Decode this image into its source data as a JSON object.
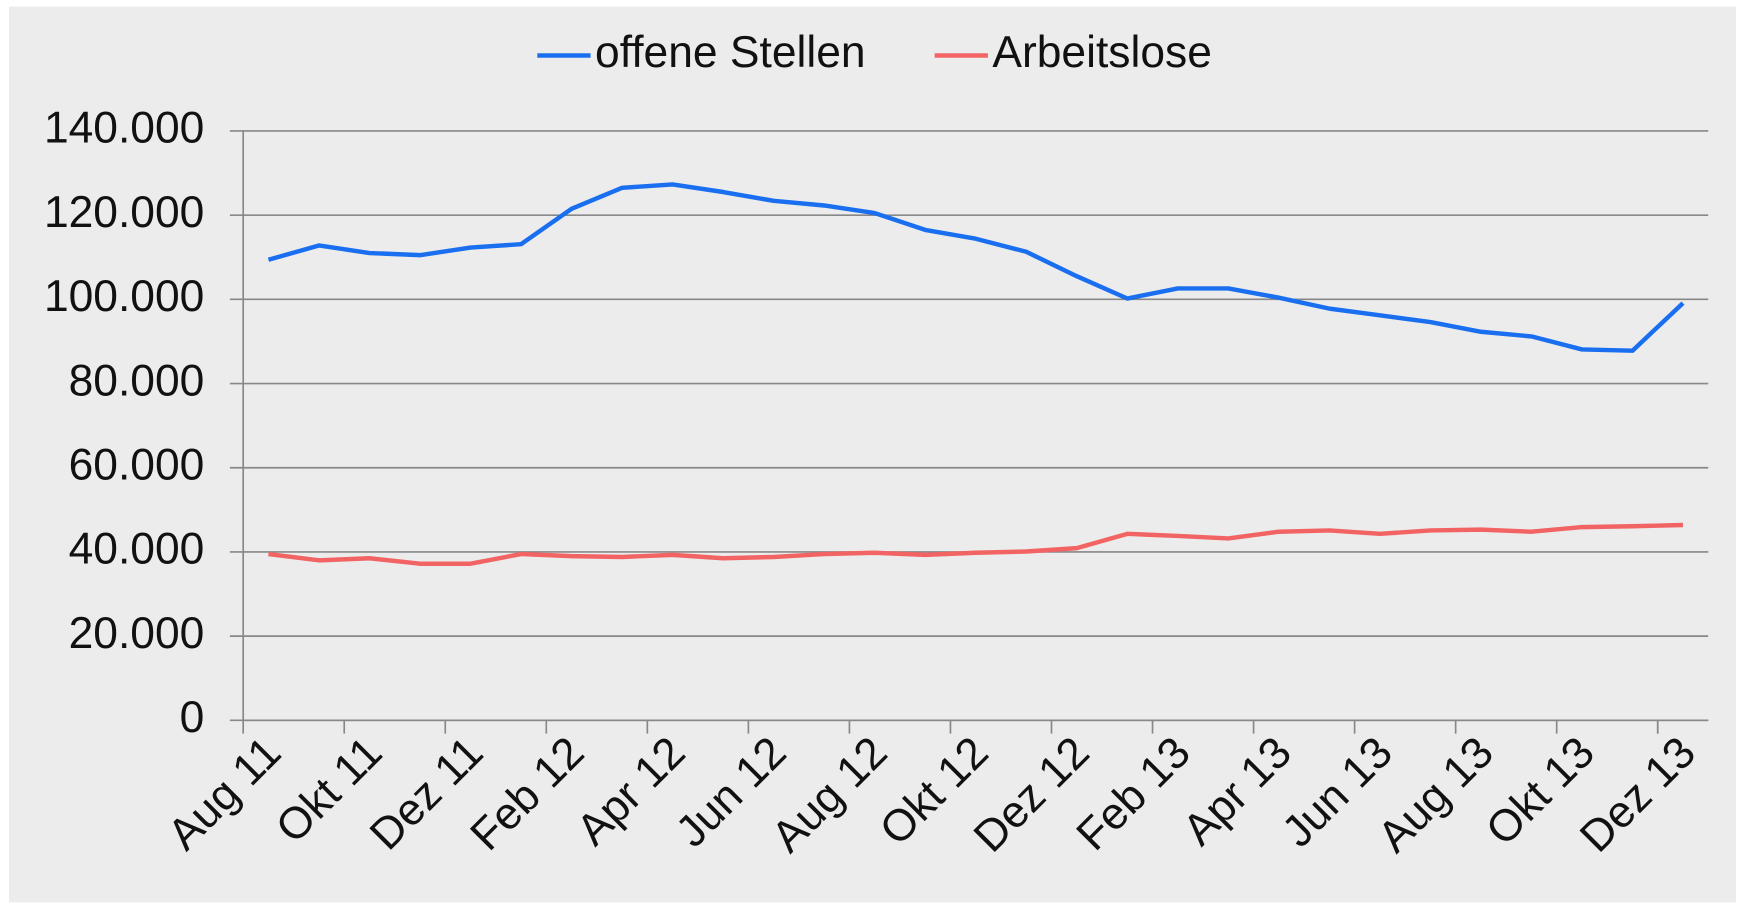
{
  "chart_data": {
    "type": "line",
    "categories": [
      "Aug 11",
      null,
      "Okt 11",
      null,
      "Dez 11",
      null,
      "Feb 12",
      null,
      "Apr 12",
      null,
      "Jun 12",
      null,
      "Aug 12",
      null,
      "Okt 12",
      null,
      "Dez 12",
      null,
      "Feb 13",
      null,
      "Apr 13",
      null,
      "Jun 13",
      null,
      "Aug 13",
      null,
      "Okt 13",
      null,
      "Dez 13"
    ],
    "series": [
      {
        "name": "offene Stellen",
        "color": "#1a6ff0",
        "values": [
          109400,
          112800,
          111000,
          110500,
          112300,
          113100,
          121500,
          126500,
          127300,
          125500,
          123400,
          122300,
          120500,
          116500,
          114400,
          111300,
          105500,
          100200,
          102600,
          102600,
          100400,
          97800,
          96200,
          94600,
          92300,
          91200,
          88100,
          87800,
          99100
        ]
      },
      {
        "name": "Arbeitslose",
        "color": "#f26464",
        "values": [
          39500,
          38000,
          38500,
          37200,
          37200,
          39500,
          39000,
          38800,
          39300,
          38500,
          38800,
          39500,
          39800,
          39300,
          39800,
          40100,
          40900,
          44300,
          43800,
          43200,
          44800,
          45100,
          44300,
          45100,
          45300,
          44800,
          45900,
          46100,
          46400
        ]
      }
    ],
    "ylim": [
      0,
      140000
    ],
    "yticks": [
      0,
      {
        "value": 20000,
        "label": "20.000"
      },
      {
        "value": 40000,
        "label": "40.000"
      },
      {
        "value": 60000,
        "label": "60.000"
      },
      {
        "value": 80000,
        "label": "80.000"
      },
      {
        "value": 100000,
        "label": "100.000"
      },
      {
        "value": 120000,
        "label": "120.000"
      },
      {
        "value": 140000,
        "label": "140.000"
      }
    ],
    "grid": true,
    "legend": "top"
  }
}
